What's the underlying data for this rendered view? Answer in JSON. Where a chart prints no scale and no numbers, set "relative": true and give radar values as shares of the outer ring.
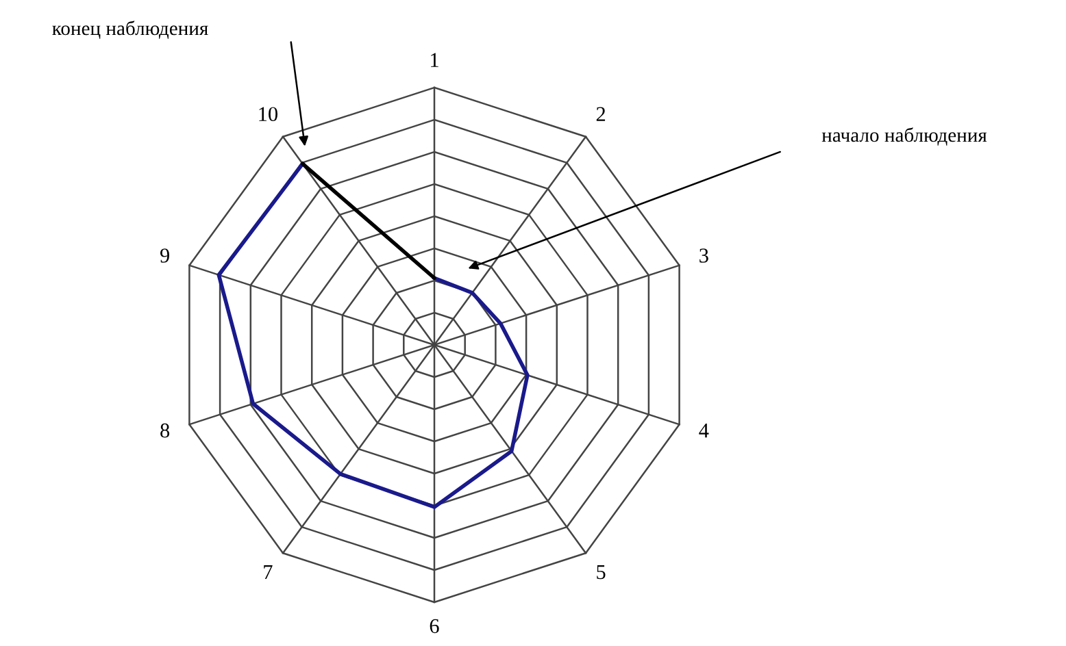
{
  "chart_data": {
    "type": "radar",
    "relative": true,
    "grid": true,
    "categories": [
      "1",
      "2",
      "3",
      "4",
      "5",
      "6",
      "7",
      "8",
      "9",
      "10"
    ],
    "series": [
      {
        "color": "#1a1a8c",
        "values": [
          0.26,
          0.25,
          0.27,
          0.38,
          0.51,
          0.63,
          0.62,
          0.74,
          0.88,
          0.87
        ]
      }
    ],
    "annotations": [
      "конец наблюдения",
      "начало наблюдения"
    ]
  }
}
